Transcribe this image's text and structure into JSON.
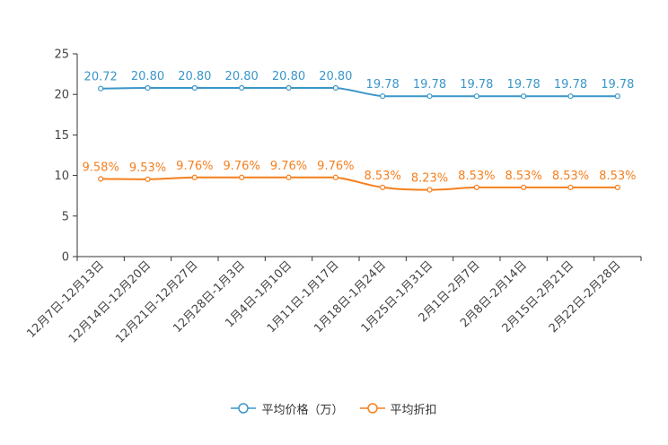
{
  "colors": {
    "price": "#3a96c8",
    "discount": "#f57f1e",
    "axis": "#333333",
    "text": "#444444"
  },
  "chart_data": {
    "type": "line",
    "title": "",
    "xlabel": "",
    "ylabel": "",
    "ylim": [
      0,
      25
    ],
    "yticks": [
      "0",
      "5",
      "10",
      "15",
      "20",
      "25"
    ],
    "categories": [
      "12月7日-12月13日",
      "12月14日-12月20日",
      "12月21日-12月27日",
      "12月28日-1月3日",
      "1月4日-1月10日",
      "1月11日-1月17日",
      "1月18日-1月24日",
      "1月25日-1月31日",
      "2月1日-2月7日",
      "2月8日-2月14日",
      "2月15日-2月21日",
      "2月22日-2月28日"
    ],
    "series": [
      {
        "name": "平均价格（万）",
        "color": "#3a96c8",
        "values": [
          20.72,
          20.8,
          20.8,
          20.8,
          20.8,
          20.8,
          19.78,
          19.78,
          19.78,
          19.78,
          19.78,
          19.78
        ],
        "labels": [
          "20.72",
          "20.80",
          "20.80",
          "20.80",
          "20.80",
          "20.80",
          "19.78",
          "19.78",
          "19.78",
          "19.78",
          "19.78",
          "19.78"
        ]
      },
      {
        "name": "平均折扣",
        "color": "#f57f1e",
        "values": [
          9.58,
          9.53,
          9.76,
          9.76,
          9.76,
          9.76,
          8.53,
          8.23,
          8.53,
          8.53,
          8.53,
          8.53
        ],
        "labels": [
          "9.58%",
          "9.53%",
          "9.76%",
          "9.76%",
          "9.76%",
          "9.76%",
          "8.53%",
          "8.23%",
          "8.53%",
          "8.53%",
          "8.53%",
          "8.53%"
        ]
      }
    ],
    "legend_position": "bottom-center",
    "grid": false
  }
}
